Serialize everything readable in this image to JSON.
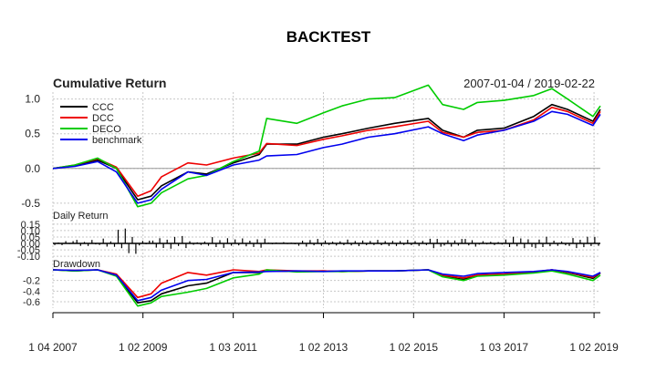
{
  "chart_data": {
    "type": "line",
    "title": "BACKTEST",
    "date_range": "2007-01-04 / 2019-02-22",
    "x_start": "2007-01-04",
    "x_end": "2019-02-22",
    "x_tick_labels": [
      "1 04 2007",
      "1 02 2009",
      "1 03 2011",
      "1 02 2013",
      "1 02 2015",
      "1 03 2017",
      "1 02 2019"
    ],
    "x_tick_dates": [
      "2007-01-04",
      "2009-01-02",
      "2011-01-03",
      "2013-01-02",
      "2015-01-02",
      "2017-01-03",
      "2019-01-02"
    ],
    "grid": true,
    "legend_position": "top-left",
    "panels": [
      {
        "title": "Cumulative Return",
        "ylim": [
          -0.62,
          1.1
        ],
        "y_ticks": [
          1.0,
          0.5,
          0.0,
          -0.5
        ],
        "y_tick_labels": [
          "1.0",
          "0.5",
          "0.0",
          "-0.5"
        ],
        "reference_line": 0,
        "series": [
          {
            "name": "CCC",
            "color": "#000000",
            "x": [
              "2007-01-04",
              "2007-07-01",
              "2008-01-01",
              "2008-06-01",
              "2008-11-20",
              "2009-03-09",
              "2009-06-01",
              "2010-01-01",
              "2010-06-01",
              "2011-01-03",
              "2011-08-01",
              "2011-10-01",
              "2012-06-01",
              "2013-01-02",
              "2013-06-01",
              "2014-01-01",
              "2014-08-01",
              "2015-05-01",
              "2015-08-25",
              "2016-02-11",
              "2016-06-01",
              "2017-01-03",
              "2017-09-01",
              "2018-01-26",
              "2018-06-01",
              "2018-12-24",
              "2019-02-22"
            ],
            "values": [
              0.0,
              0.04,
              0.12,
              0.0,
              -0.45,
              -0.4,
              -0.25,
              -0.05,
              -0.08,
              0.08,
              0.2,
              0.35,
              0.35,
              0.45,
              0.5,
              0.58,
              0.65,
              0.72,
              0.55,
              0.45,
              0.55,
              0.58,
              0.75,
              0.92,
              0.85,
              0.68,
              0.85
            ]
          },
          {
            "name": "DCC",
            "color": "#ee0000",
            "x": [
              "2007-01-04",
              "2007-07-01",
              "2008-01-01",
              "2008-06-01",
              "2008-11-20",
              "2009-03-09",
              "2009-06-01",
              "2010-01-01",
              "2010-06-01",
              "2011-01-03",
              "2011-08-01",
              "2011-10-01",
              "2012-06-01",
              "2013-01-02",
              "2013-06-01",
              "2014-01-01",
              "2014-08-01",
              "2015-05-01",
              "2015-08-25",
              "2016-02-11",
              "2016-06-01",
              "2017-01-03",
              "2017-09-01",
              "2018-01-26",
              "2018-06-01",
              "2018-12-24",
              "2019-02-22"
            ],
            "values": [
              0.0,
              0.05,
              0.14,
              0.02,
              -0.4,
              -0.32,
              -0.12,
              0.08,
              0.05,
              0.15,
              0.22,
              0.36,
              0.33,
              0.42,
              0.47,
              0.55,
              0.6,
              0.68,
              0.52,
              0.45,
              0.52,
              0.55,
              0.7,
              0.88,
              0.82,
              0.65,
              0.82
            ]
          },
          {
            "name": "DECO",
            "color": "#00cc00",
            "x": [
              "2007-01-04",
              "2007-07-01",
              "2008-01-01",
              "2008-06-01",
              "2008-11-20",
              "2009-03-09",
              "2009-06-01",
              "2010-01-01",
              "2010-06-01",
              "2011-01-03",
              "2011-08-01",
              "2011-10-01",
              "2012-06-01",
              "2013-01-02",
              "2013-06-01",
              "2014-01-01",
              "2014-08-01",
              "2015-05-01",
              "2015-08-25",
              "2016-02-11",
              "2016-06-01",
              "2017-01-03",
              "2017-09-01",
              "2018-01-26",
              "2018-06-01",
              "2018-12-24",
              "2019-02-22"
            ],
            "values": [
              0.0,
              0.05,
              0.15,
              0.0,
              -0.55,
              -0.5,
              -0.35,
              -0.15,
              -0.1,
              0.1,
              0.25,
              0.72,
              0.65,
              0.8,
              0.9,
              1.0,
              1.02,
              1.2,
              0.92,
              0.85,
              0.95,
              0.98,
              1.05,
              1.15,
              1.0,
              0.75,
              0.9
            ]
          },
          {
            "name": "benchmark",
            "color": "#0000ee",
            "x": [
              "2007-01-04",
              "2007-07-01",
              "2008-01-01",
              "2008-06-01",
              "2008-11-20",
              "2009-03-09",
              "2009-06-01",
              "2010-01-01",
              "2010-06-01",
              "2011-01-03",
              "2011-08-01",
              "2011-10-01",
              "2012-06-01",
              "2013-01-02",
              "2013-06-01",
              "2014-01-01",
              "2014-08-01",
              "2015-05-01",
              "2015-08-25",
              "2016-02-11",
              "2016-06-01",
              "2017-01-03",
              "2017-09-01",
              "2018-01-26",
              "2018-06-01",
              "2018-12-24",
              "2019-02-22"
            ],
            "values": [
              0.0,
              0.03,
              0.1,
              -0.05,
              -0.5,
              -0.45,
              -0.3,
              -0.05,
              -0.1,
              0.05,
              0.12,
              0.18,
              0.2,
              0.3,
              0.35,
              0.45,
              0.5,
              0.6,
              0.5,
              0.4,
              0.48,
              0.55,
              0.68,
              0.82,
              0.78,
              0.62,
              0.78
            ]
          }
        ]
      },
      {
        "title": "Daily Return",
        "ylim": [
          -0.12,
          0.17
        ],
        "y_ticks": [
          0.15,
          0.1,
          0.05,
          0.0,
          -0.05,
          -0.1
        ],
        "y_tick_labels": [
          "0.15",
          "0.10",
          "0.05",
          "0.00",
          "-0.05",
          "-0.10"
        ],
        "series_color": "#000000"
      },
      {
        "title": "Drawdown",
        "ylim": [
          -0.72,
          0.0
        ],
        "y_ticks": [
          -0.2,
          -0.4,
          -0.6
        ],
        "y_tick_labels": [
          "-0.2",
          "-0.4",
          "-0.6"
        ],
        "series": [
          {
            "name": "CCC",
            "color": "#000000",
            "x": [
              "2007-01-04",
              "2007-07-01",
              "2008-01-01",
              "2008-06-01",
              "2008-11-20",
              "2009-03-09",
              "2009-06-01",
              "2010-01-01",
              "2010-06-01",
              "2011-01-03",
              "2011-08-01",
              "2011-10-01",
              "2012-06-01",
              "2013-01-02",
              "2013-06-01",
              "2014-01-01",
              "2014-08-01",
              "2015-05-01",
              "2015-08-25",
              "2016-02-11",
              "2016-06-01",
              "2017-01-03",
              "2017-09-01",
              "2018-01-26",
              "2018-06-01",
              "2018-12-24",
              "2019-02-22"
            ],
            "values": [
              0.0,
              -0.02,
              0.0,
              -0.1,
              -0.62,
              -0.58,
              -0.45,
              -0.3,
              -0.25,
              -0.05,
              -0.05,
              -0.02,
              -0.03,
              -0.02,
              -0.03,
              -0.02,
              -0.02,
              0.0,
              -0.12,
              -0.18,
              -0.1,
              -0.08,
              -0.04,
              0.0,
              -0.05,
              -0.16,
              -0.06
            ]
          },
          {
            "name": "DCC",
            "color": "#ee0000",
            "x": [
              "2007-01-04",
              "2007-07-01",
              "2008-01-01",
              "2008-06-01",
              "2008-11-20",
              "2009-03-09",
              "2009-06-01",
              "2010-01-01",
              "2010-06-01",
              "2011-01-03",
              "2011-08-01",
              "2011-10-01",
              "2012-06-01",
              "2013-01-02",
              "2013-06-01",
              "2014-01-01",
              "2014-08-01",
              "2015-05-01",
              "2015-08-25",
              "2016-02-11",
              "2016-06-01",
              "2017-01-03",
              "2017-09-01",
              "2018-01-26",
              "2018-06-01",
              "2018-12-24",
              "2019-02-22"
            ],
            "values": [
              0.0,
              -0.01,
              0.0,
              -0.08,
              -0.52,
              -0.45,
              -0.25,
              -0.05,
              -0.1,
              0.0,
              -0.03,
              0.0,
              -0.02,
              -0.02,
              -0.03,
              -0.02,
              -0.02,
              0.0,
              -0.1,
              -0.15,
              -0.1,
              -0.08,
              -0.04,
              0.0,
              -0.04,
              -0.14,
              -0.05
            ]
          },
          {
            "name": "DECO",
            "color": "#00cc00",
            "x": [
              "2007-01-04",
              "2007-07-01",
              "2008-01-01",
              "2008-06-01",
              "2008-11-20",
              "2009-03-09",
              "2009-06-01",
              "2010-01-01",
              "2010-06-01",
              "2011-01-03",
              "2011-08-01",
              "2011-10-01",
              "2012-06-01",
              "2013-01-02",
              "2013-06-01",
              "2014-01-01",
              "2014-08-01",
              "2015-05-01",
              "2015-08-25",
              "2016-02-11",
              "2016-06-01",
              "2017-01-03",
              "2017-09-01",
              "2018-01-26",
              "2018-06-01",
              "2018-12-24",
              "2019-02-22"
            ],
            "values": [
              0.0,
              -0.02,
              0.0,
              -0.12,
              -0.68,
              -0.62,
              -0.5,
              -0.42,
              -0.35,
              -0.15,
              -0.08,
              0.0,
              -0.04,
              -0.03,
              -0.03,
              -0.02,
              -0.02,
              0.0,
              -0.13,
              -0.2,
              -0.12,
              -0.1,
              -0.06,
              -0.02,
              -0.08,
              -0.2,
              -0.1
            ]
          },
          {
            "name": "benchmark",
            "color": "#0000ee",
            "x": [
              "2007-01-04",
              "2007-07-01",
              "2008-01-01",
              "2008-06-01",
              "2008-11-20",
              "2009-03-09",
              "2009-06-01",
              "2010-01-01",
              "2010-06-01",
              "2011-01-03",
              "2011-08-01",
              "2011-10-01",
              "2012-06-01",
              "2013-01-02",
              "2013-06-01",
              "2014-01-01",
              "2014-08-01",
              "2015-05-01",
              "2015-08-25",
              "2016-02-11",
              "2016-06-01",
              "2017-01-03",
              "2017-09-01",
              "2018-01-26",
              "2018-06-01",
              "2018-12-24",
              "2019-02-22"
            ],
            "values": [
              0.0,
              -0.01,
              0.0,
              -0.1,
              -0.58,
              -0.52,
              -0.38,
              -0.2,
              -0.18,
              -0.05,
              -0.04,
              -0.03,
              -0.02,
              -0.03,
              -0.02,
              -0.02,
              -0.02,
              0.0,
              -0.08,
              -0.12,
              -0.07,
              -0.05,
              -0.03,
              0.0,
              -0.03,
              -0.12,
              -0.05
            ]
          }
        ]
      }
    ]
  }
}
